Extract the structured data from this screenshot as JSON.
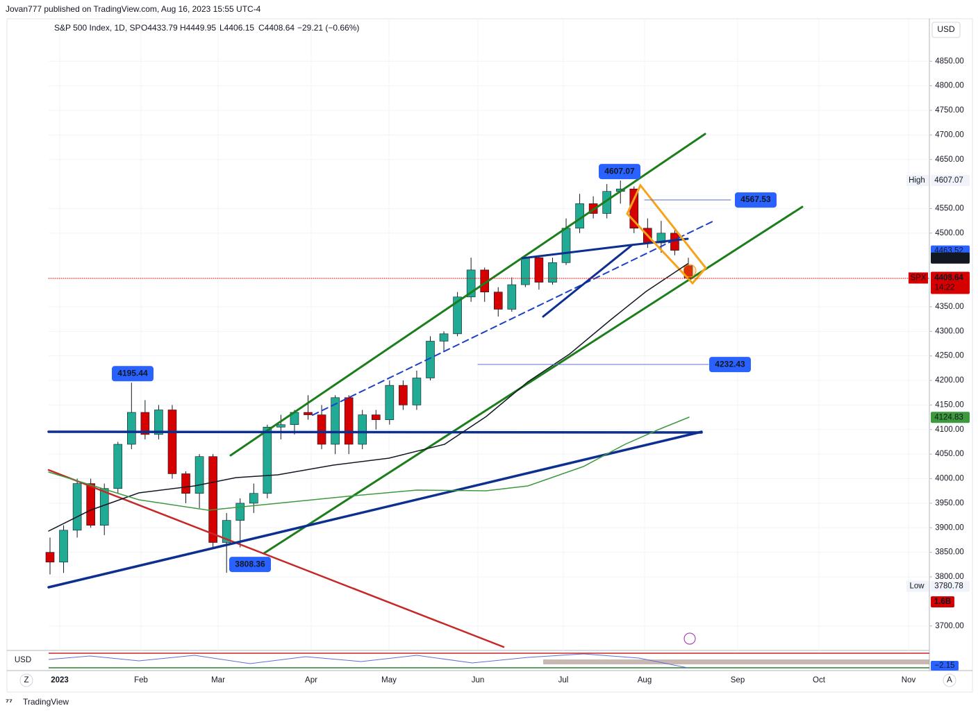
{
  "header": {
    "published": "Jovan777 published on TradingView.com, Aug 16, 2023 15:55 UTC-4",
    "symbol": "S&P 500 Index, 1D, SP",
    "legend": [
      "O4433.79",
      "H4449.95",
      "L4406.15",
      "C4408.64",
      "−29.21 (−0.66%)"
    ],
    "currency": "USD",
    "pane_currency": "USD",
    "zoom_button": "Z",
    "auto_button": "A",
    "brand": "TradingView"
  },
  "chart_data": {
    "type": "candlestick",
    "x_axis_labels": [
      "2023",
      "Feb",
      "Mar",
      "Apr",
      "May",
      "Jun",
      "Jul",
      "Aug",
      "Sep",
      "Oct",
      "Nov"
    ],
    "open": [
      3850,
      3830,
      3895,
      3990,
      3905,
      3980,
      4070,
      4135,
      4090,
      4140,
      4010,
      3970,
      4045,
      3870,
      3915,
      3950,
      3970,
      4105,
      4110,
      4135,
      4130,
      4070,
      4165,
      4070,
      4130,
      4120,
      4190,
      4150,
      4205,
      4280,
      4295,
      4370,
      4425,
      4380,
      4345,
      4395,
      4450,
      4400,
      4440,
      4510,
      4560,
      4540,
      4585,
      4590,
      4510,
      4480,
      4500,
      4433.79
    ],
    "high": [
      3880,
      3905,
      4000,
      4000,
      3990,
      4075,
      4195.44,
      4160,
      4150,
      4150,
      4015,
      4050,
      4050,
      3930,
      3960,
      3990,
      4110,
      4130,
      4140,
      4170,
      4150,
      4170,
      4170,
      4140,
      4140,
      4200,
      4200,
      4220,
      4290,
      4300,
      4380,
      4450,
      4430,
      4390,
      4410,
      4455,
      4455,
      4450,
      4530,
      4580,
      4575,
      4600,
      4607.07,
      4595,
      4530,
      4525,
      4510,
      4449.95
    ],
    "low": [
      3805,
      3808,
      3880,
      3900,
      3885,
      3970,
      4060,
      4080,
      4080,
      4000,
      3950,
      3940,
      3860,
      3808.36,
      3860,
      3930,
      3960,
      4080,
      4090,
      4120,
      4060,
      4050,
      4050,
      4060,
      4100,
      4110,
      4140,
      4140,
      4200,
      4260,
      4290,
      4360,
      4360,
      4330,
      4340,
      4390,
      4385,
      4395,
      4435,
      4500,
      4530,
      4530,
      4560,
      4500,
      4470,
      4460,
      4455,
      4406.15
    ],
    "close": [
      3830,
      3895,
      3990,
      3905,
      3980,
      4070,
      4135,
      4090,
      4140,
      4010,
      3970,
      4045,
      3870,
      3915,
      3950,
      3970,
      4105,
      4110,
      4135,
      4130,
      4070,
      4165,
      4070,
      4130,
      4120,
      4190,
      4150,
      4205,
      4280,
      4295,
      4370,
      4425,
      4380,
      4345,
      4395,
      4450,
      4400,
      4440,
      4510,
      4560,
      4540,
      4585,
      4590,
      4510,
      4480,
      4500,
      4465,
      4408.64
    ],
    "up_color": "#22ab94",
    "down_color": "#d50000",
    "ylim": [
      3653,
      4897
    ],
    "yticks": [
      {
        "value": 3700,
        "label": "3700.00"
      },
      {
        "value": 3800,
        "label": "3800.00"
      },
      {
        "value": 3850,
        "label": "3850.00"
      },
      {
        "value": 3900,
        "label": "3900.00"
      },
      {
        "value": 3950,
        "label": "3950.00"
      },
      {
        "value": 4000,
        "label": "4000.00"
      },
      {
        "value": 4050,
        "label": "4050.00"
      },
      {
        "value": 4100,
        "label": "4100.00"
      },
      {
        "value": 4150,
        "label": "4150.00"
      },
      {
        "value": 4200,
        "label": "4200.00"
      },
      {
        "value": 4250,
        "label": "4250.00"
      },
      {
        "value": 4300,
        "label": "4300.00"
      },
      {
        "value": 4350,
        "label": "4350.00"
      },
      {
        "value": 4500,
        "label": "4500.00"
      },
      {
        "value": 4550,
        "label": "4550.00"
      },
      {
        "value": 4650,
        "label": "4650.00"
      },
      {
        "value": 4700,
        "label": "4700.00"
      },
      {
        "value": 4750,
        "label": "4750.00"
      },
      {
        "value": 4800,
        "label": "4800.00"
      },
      {
        "value": 4850,
        "label": "4850.00"
      }
    ],
    "grid": true,
    "callouts": [
      4607.07,
      4567.53,
      4232.43,
      4195.44,
      3808.36
    ],
    "scale_labels": {
      "high_text": "High",
      "high": 4607.07,
      "ma_blue": 4463.52,
      "ma_black": 4449.23,
      "symbol": "SPX",
      "last": 4408.64,
      "countdown": "14:22",
      "ma_green": 4124.83,
      "low_text": "Low",
      "low": 3780.78,
      "volume": "1.6B",
      "oscillator": "−2.15"
    }
  }
}
